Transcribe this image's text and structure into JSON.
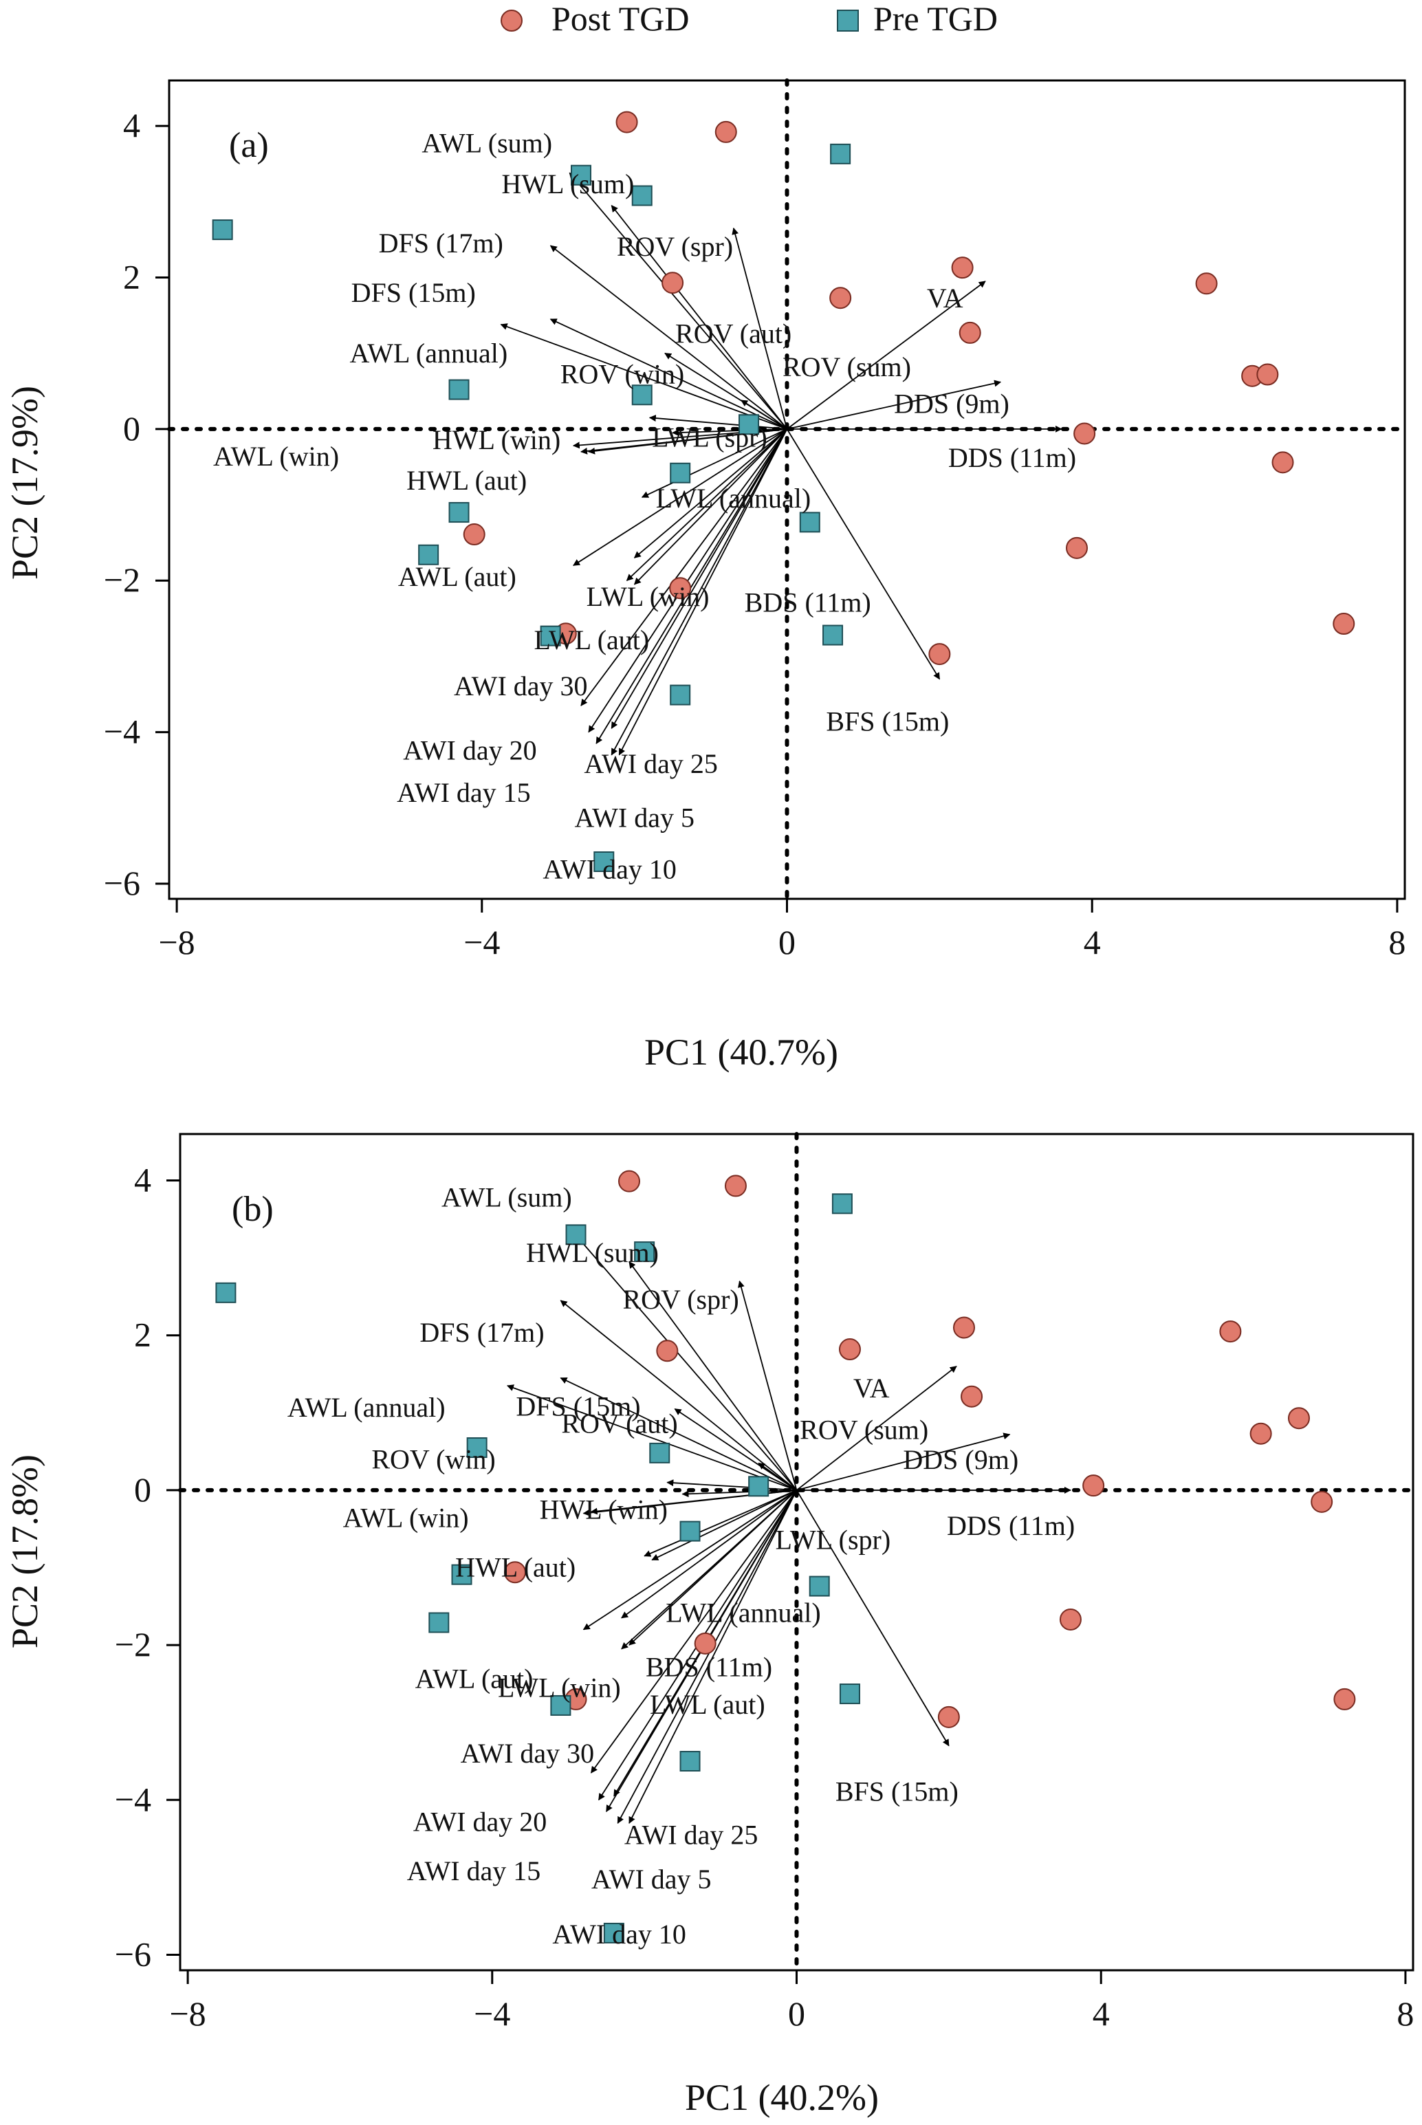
{
  "legend": {
    "post_label": "Post TGD",
    "pre_label": "Pre TGD"
  },
  "colors": {
    "post_fill": "#e07a6c",
    "post_stroke": "#7a2c22",
    "pre_fill": "#4aa3ad",
    "pre_stroke": "#1e4e55",
    "arrow": "#000000"
  },
  "chart_data": [
    {
      "type": "scatter",
      "panel_label": "(a)",
      "xlabel": "PC1 (40.7%)",
      "ylabel": "PC2 (17.9%)",
      "xlim": [
        -8.1,
        8.1
      ],
      "ylim": [
        -6.2,
        4.6
      ],
      "xticks": [
        "−8",
        "−4",
        "0",
        "4",
        "8"
      ],
      "xtick_values": [
        -8,
        -4,
        0,
        4,
        8
      ],
      "yticks": [
        "−6",
        "−4",
        "−2",
        "0",
        "2",
        "4"
      ],
      "ytick_values": [
        -6,
        -4,
        -2,
        0,
        2,
        4
      ],
      "series": [
        {
          "name": "Post TGD",
          "marker": "circle",
          "points": [
            [
              -2.1,
              4.05
            ],
            [
              -0.8,
              3.92
            ],
            [
              2.3,
              2.13
            ],
            [
              0.7,
              1.73
            ],
            [
              2.4,
              1.27
            ],
            [
              5.5,
              1.92
            ],
            [
              6.1,
              0.7
            ],
            [
              6.3,
              0.72
            ],
            [
              3.9,
              -0.06
            ],
            [
              6.5,
              -0.44
            ],
            [
              3.8,
              -1.57
            ],
            [
              7.3,
              -2.57
            ],
            [
              2.0,
              -2.97
            ],
            [
              -4.1,
              -1.39
            ],
            [
              -1.4,
              -2.1
            ],
            [
              -2.9,
              -2.7
            ],
            [
              -1.5,
              1.93
            ]
          ]
        },
        {
          "name": "Pre TGD",
          "marker": "square",
          "points": [
            [
              -7.4,
              2.63
            ],
            [
              0.7,
              3.63
            ],
            [
              -2.7,
              3.35
            ],
            [
              -1.9,
              3.08
            ],
            [
              -4.3,
              0.52
            ],
            [
              -1.9,
              0.45
            ],
            [
              -0.5,
              0.06
            ],
            [
              -1.4,
              -0.58
            ],
            [
              -4.3,
              -1.1
            ],
            [
              0.3,
              -1.23
            ],
            [
              -4.7,
              -1.66
            ],
            [
              -3.1,
              -2.73
            ],
            [
              0.6,
              -2.72
            ],
            [
              -1.4,
              -3.51
            ],
            [
              -2.4,
              -5.71
            ]
          ]
        }
      ],
      "loadings": [
        {
          "label": "AWL (sum)",
          "x": -2.85,
          "y": 3.38
        },
        {
          "label": "HWL (sum)",
          "x": -2.3,
          "y": 2.95
        },
        {
          "label": "DFS (17m)",
          "x": -3.1,
          "y": 2.42
        },
        {
          "label": "ROV (spr)",
          "x": -0.7,
          "y": 2.65
        },
        {
          "label": "DFS (15m)",
          "x": -3.1,
          "y": 1.45
        },
        {
          "label": "ROV (aut)",
          "x": -1.6,
          "y": 1.0
        },
        {
          "label": "AWL (annual)",
          "x": -3.75,
          "y": 1.38
        },
        {
          "label": "ROV (win)",
          "x": -1.8,
          "y": 0.15
        },
        {
          "label": "ROV (sum)",
          "x": -0.6,
          "y": 0.38
        },
        {
          "label": "VA",
          "x": 2.6,
          "y": 1.95
        },
        {
          "label": "DDS (9m)",
          "x": 2.8,
          "y": 0.62
        },
        {
          "label": "DDS (11m)",
          "x": 3.6,
          "y": 0.0
        },
        {
          "label": "AWL (win)",
          "x": -2.7,
          "y": -0.3
        },
        {
          "label": "HWL (win)",
          "x": -2.8,
          "y": -0.22
        },
        {
          "label": "LWL (spr)",
          "x": -1.5,
          "y": -0.05
        },
        {
          "label": "HWL (aut)",
          "x": -2.6,
          "y": -0.3
        },
        {
          "label": "LWL (annual)",
          "x": -1.9,
          "y": -0.9
        },
        {
          "label": "LWL (win)",
          "x": -2.0,
          "y": -1.7
        },
        {
          "label": "AWL (aut)",
          "x": -2.8,
          "y": -1.8
        },
        {
          "label": "BDS (11m)",
          "x": -2.0,
          "y": -2.05
        },
        {
          "label": "LWL (aut)",
          "x": -2.1,
          "y": -2.0
        },
        {
          "label": "BFS (15m)",
          "x": 2.0,
          "y": -3.3
        },
        {
          "label": "AWI day 30",
          "x": -2.7,
          "y": -3.65
        },
        {
          "label": "AWI day 25",
          "x": -2.3,
          "y": -3.95
        },
        {
          "label": "AWI day 20",
          "x": -2.6,
          "y": -4.0
        },
        {
          "label": "AWI day 15",
          "x": -2.5,
          "y": -4.15
        },
        {
          "label": "AWI day 5",
          "x": -2.2,
          "y": -4.3
        },
        {
          "label": "AWI day 10",
          "x": -2.3,
          "y": -4.3
        }
      ]
    },
    {
      "type": "scatter",
      "panel_label": "(b)",
      "xlabel": "PC1 (40.2%)",
      "ylabel": "PC2 (17.8%)",
      "xlim": [
        -8.1,
        8.1
      ],
      "ylim": [
        -6.2,
        4.6
      ],
      "xticks": [
        "−8",
        "−4",
        "0",
        "4",
        "8"
      ],
      "xtick_values": [
        -8,
        -4,
        0,
        4,
        8
      ],
      "yticks": [
        "−6",
        "−4",
        "−2",
        "0",
        "2",
        "4"
      ],
      "ytick_values": [
        -6,
        -4,
        -2,
        0,
        2,
        4
      ],
      "series": [
        {
          "name": "Post TGD",
          "marker": "circle",
          "points": [
            [
              -2.2,
              3.99
            ],
            [
              -0.8,
              3.93
            ],
            [
              2.2,
              2.1
            ],
            [
              0.7,
              1.82
            ],
            [
              2.3,
              1.21
            ],
            [
              5.7,
              2.05
            ],
            [
              6.1,
              0.73
            ],
            [
              6.6,
              0.93
            ],
            [
              3.9,
              0.06
            ],
            [
              6.9,
              -0.15
            ],
            [
              3.6,
              -1.67
            ],
            [
              7.2,
              -2.7
            ],
            [
              2.0,
              -2.93
            ],
            [
              -3.7,
              -1.06
            ],
            [
              -1.2,
              -1.98
            ],
            [
              -2.9,
              -2.7
            ],
            [
              -1.7,
              1.8
            ]
          ]
        },
        {
          "name": "Pre TGD",
          "marker": "square",
          "points": [
            [
              -7.5,
              2.55
            ],
            [
              0.6,
              3.7
            ],
            [
              -2.9,
              3.3
            ],
            [
              -2.0,
              3.08
            ],
            [
              -4.2,
              0.55
            ],
            [
              -1.8,
              0.48
            ],
            [
              -0.5,
              0.05
            ],
            [
              -1.4,
              -0.53
            ],
            [
              -4.4,
              -1.09
            ],
            [
              0.3,
              -1.24
            ],
            [
              -4.7,
              -1.71
            ],
            [
              -3.1,
              -2.78
            ],
            [
              0.7,
              -2.63
            ],
            [
              -1.4,
              -3.5
            ],
            [
              -2.4,
              -5.72
            ]
          ]
        }
      ],
      "loadings": [
        {
          "label": "AWL (sum)",
          "x": -2.95,
          "y": 3.35
        },
        {
          "label": "HWL (sum)",
          "x": -2.2,
          "y": 2.95
        },
        {
          "label": "DFS (17m)",
          "x": -3.1,
          "y": 2.45
        },
        {
          "label": "ROV (spr)",
          "x": -0.75,
          "y": 2.7
        },
        {
          "label": "DFS (15m)",
          "x": -3.1,
          "y": 1.45
        },
        {
          "label": "ROV (aut)",
          "x": -1.6,
          "y": 1.05
        },
        {
          "label": "AWL (annual)",
          "x": -3.8,
          "y": 1.35
        },
        {
          "label": "ROV (win)",
          "x": -1.7,
          "y": 0.1
        },
        {
          "label": "ROV (sum)",
          "x": -0.5,
          "y": 0.35
        },
        {
          "label": "VA",
          "x": 2.1,
          "y": 1.6
        },
        {
          "label": "DDS (9m)",
          "x": 2.8,
          "y": 0.72
        },
        {
          "label": "DDS (11m)",
          "x": 3.6,
          "y": 0.0
        },
        {
          "label": "AWL (win)",
          "x": -2.8,
          "y": -0.3
        },
        {
          "label": "HWL (win)",
          "x": -2.7,
          "y": -0.28
        },
        {
          "label": "LWL (spr)",
          "x": -1.5,
          "y": -0.05
        },
        {
          "label": "HWL (aut)",
          "x": -2.0,
          "y": -0.85
        },
        {
          "label": "LWL (annual)",
          "x": -1.9,
          "y": -0.9
        },
        {
          "label": "LWL (win)",
          "x": -2.3,
          "y": -1.65
        },
        {
          "label": "AWL (aut)",
          "x": -2.8,
          "y": -1.8
        },
        {
          "label": "BDS (11m)",
          "x": -2.3,
          "y": -2.05
        },
        {
          "label": "LWL (aut)",
          "x": -2.2,
          "y": -2.0
        },
        {
          "label": "BFS (15m)",
          "x": 2.0,
          "y": -3.3
        },
        {
          "label": "AWI day 30",
          "x": -2.7,
          "y": -3.65
        },
        {
          "label": "AWI day 25",
          "x": -2.4,
          "y": -3.95
        },
        {
          "label": "AWI day 20",
          "x": -2.6,
          "y": -4.0
        },
        {
          "label": "AWI day 15",
          "x": -2.5,
          "y": -4.15
        },
        {
          "label": "AWI day 5",
          "x": -2.2,
          "y": -4.3
        },
        {
          "label": "AWI day 10",
          "x": -2.35,
          "y": -4.3
        }
      ]
    }
  ]
}
